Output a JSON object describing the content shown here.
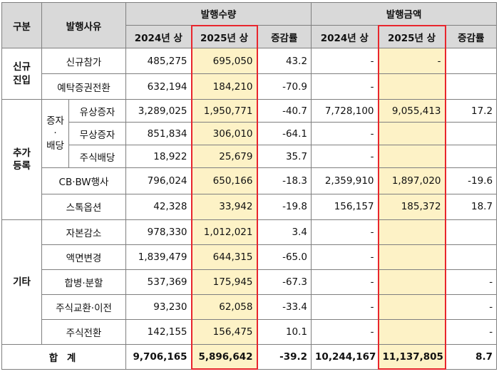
{
  "header": {
    "category": "구분",
    "reason": "발행사유",
    "quantity_group": "발행수량",
    "amount_group": "발행금액",
    "col_2024": "2024년 상",
    "col_2025": "2025년 상",
    "col_change": "증감률"
  },
  "groups": {
    "new": "신규\n진입",
    "add": "추가\n등록",
    "capital": "증자\n·\n배당",
    "other": "기타"
  },
  "rows": [
    {
      "label": "신규참가",
      "q2024": "485,275",
      "q2025": "695,050",
      "qchg": "43.2",
      "a2024": "-",
      "a2025": "-",
      "achg": ""
    },
    {
      "label": "예탁증권전환",
      "q2024": "632,194",
      "q2025": "184,210",
      "qchg": "-70.9",
      "a2024": "-",
      "a2025": "",
      "achg": ""
    },
    {
      "label": "유상증자",
      "q2024": "3,289,025",
      "q2025": "1,950,771",
      "qchg": "-40.7",
      "a2024": "7,728,100",
      "a2025": "9,055,413",
      "achg": "17.2"
    },
    {
      "label": "무상증자",
      "q2024": "851,834",
      "q2025": "306,010",
      "qchg": "-64.1",
      "a2024": "-",
      "a2025": "",
      "achg": ""
    },
    {
      "label": "주식배당",
      "q2024": "18,922",
      "q2025": "25,679",
      "qchg": "35.7",
      "a2024": "-",
      "a2025": "",
      "achg": ""
    },
    {
      "label": "CB·BW행사",
      "q2024": "796,024",
      "q2025": "650,166",
      "qchg": "-18.3",
      "a2024": "2,359,910",
      "a2025": "1,897,020",
      "achg": "-19.6"
    },
    {
      "label": "스톡옵션",
      "q2024": "42,328",
      "q2025": "33,942",
      "qchg": "-19.8",
      "a2024": "156,157",
      "a2025": "185,372",
      "achg": "18.7"
    },
    {
      "label": "자본감소",
      "q2024": "978,330",
      "q2025": "1,012,021",
      "qchg": "3.4",
      "a2024": "-",
      "a2025": "",
      "achg": ""
    },
    {
      "label": "액면변경",
      "q2024": "1,839,479",
      "q2025": "644,315",
      "qchg": "-65.0",
      "a2024": "-",
      "a2025": "",
      "achg": ""
    },
    {
      "label": "합병·분할",
      "q2024": "537,369",
      "q2025": "175,945",
      "qchg": "-67.3",
      "a2024": "-",
      "a2025": "",
      "achg": "-"
    },
    {
      "label": "주식교환·이전",
      "q2024": "93,230",
      "q2025": "62,058",
      "qchg": "-33.4",
      "a2024": "-",
      "a2025": "",
      "achg": "-"
    },
    {
      "label": "주식전환",
      "q2024": "142,155",
      "q2025": "156,475",
      "qchg": "10.1",
      "a2024": "-",
      "a2025": "",
      "achg": "-"
    }
  ],
  "total": {
    "label": "합  계",
    "q2024": "9,706,165",
    "q2025": "5,896,642",
    "qchg": "-39.2",
    "a2024": "10,244,167",
    "a2025": "11,137,805",
    "achg": "8.7"
  }
}
